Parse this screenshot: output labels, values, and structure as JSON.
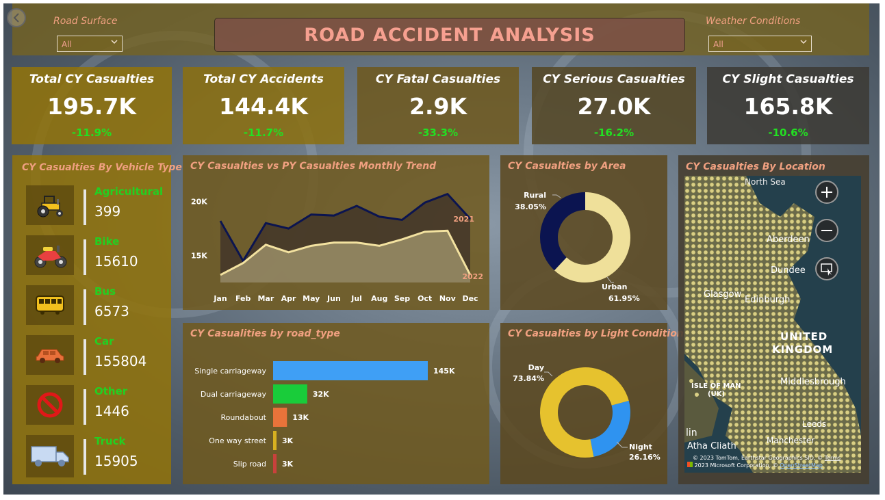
{
  "filters": {
    "road_surface": {
      "label": "Road Surface",
      "value": "All"
    },
    "weather": {
      "label": "Weather Conditions",
      "value": "All"
    }
  },
  "title": "ROAD ACCIDENT ANALYSIS",
  "kpis": [
    {
      "title": "Total CY Casualties",
      "value": "195.7K",
      "change": "-11.9%"
    },
    {
      "title": "Total CY Accidents",
      "value": "144.4K",
      "change": "-11.7%"
    },
    {
      "title": "CY Fatal Casualties",
      "value": "2.9K",
      "change": "-33.3%"
    },
    {
      "title": "CY Serious Casualties",
      "value": "27.0K",
      "change": "-16.2%"
    },
    {
      "title": "CY Slight Casualties",
      "value": "165.8K",
      "change": "-10.6%"
    }
  ],
  "vehicle_panel": {
    "title": "CY Casualties By Vehicle Type",
    "items": [
      {
        "name": "Agricultural",
        "value": "399",
        "icon": "tractor-icon"
      },
      {
        "name": "Bike",
        "value": "15610",
        "icon": "motorbike-icon"
      },
      {
        "name": "Bus",
        "value": "6573",
        "icon": "bus-icon"
      },
      {
        "name": "Car",
        "value": "155804",
        "icon": "car-icon"
      },
      {
        "name": "Other",
        "value": "1446",
        "icon": "no-entry-icon"
      },
      {
        "name": "Truck",
        "value": "15905",
        "icon": "truck-icon"
      }
    ]
  },
  "trend_panel": {
    "title": "CY Casualties vs PY Casualties Monthly Trend"
  },
  "area_panel": {
    "title": "CY Casualties by Area"
  },
  "road_panel": {
    "title": "CY Casualities by road_type"
  },
  "light_panel": {
    "title": "CY Casualties by Light Conditions"
  },
  "map_panel": {
    "title": "CY Casualties By Location",
    "labels": [
      "North Sea",
      "Aberdeen",
      "Dundee",
      "Glasgow",
      "Edinburgh",
      "UNITED",
      "KINGDOM",
      "ISLE OF MAN",
      "(UK)",
      "Middlesbrough",
      "Leeds",
      "Manchester",
      "lin",
      "Atha Cliath"
    ],
    "attribution_1": "© 2023 TomTom, Earthstar Geographics SIO, ©",
    "attribution_terms": "Terms",
    "attribution_2": "2023 Microsoft Corporation, ©",
    "attribution_osm": "OpenStreetMap"
  },
  "colors": {
    "accent_title": "#f0a080",
    "positive_change": "#22e022",
    "cy_line": "#0b1450",
    "py_line": "#f3e2a0",
    "urban": "#efe09a",
    "rural": "#0b1450",
    "day": "#e6c22e",
    "night": "#2f93f0"
  },
  "chart_data": [
    {
      "type": "area",
      "title": "CY Casualties vs PY Casualties Monthly Trend",
      "categories": [
        "Jan",
        "Feb",
        "Mar",
        "Apr",
        "May",
        "Jun",
        "Jul",
        "Aug",
        "Sep",
        "Oct",
        "Nov",
        "Dec"
      ],
      "yticks": [
        "15K",
        "20K"
      ],
      "ylim": [
        12500,
        21500
      ],
      "series": [
        {
          "name": "2021",
          "values": [
            18200,
            14500,
            18000,
            17500,
            18800,
            18700,
            19600,
            18600,
            18300,
            19900,
            20700,
            18400
          ]
        },
        {
          "name": "2022",
          "values": [
            13200,
            14300,
            16000,
            15300,
            15900,
            16200,
            16200,
            15900,
            16500,
            17200,
            17300,
            13200
          ]
        }
      ]
    },
    {
      "type": "pie",
      "title": "CY Casualties by Area",
      "labels": [
        "Urban",
        "Rural"
      ],
      "values": [
        61.95,
        38.05
      ],
      "value_labels": [
        "61.95%",
        "38.05%"
      ]
    },
    {
      "type": "bar",
      "title": "CY Casualities by road_type",
      "categories": [
        "Single carriageway",
        "Dual carriageway",
        "Roundabout",
        "One way street",
        "Slip road"
      ],
      "values": [
        145000,
        32000,
        13000,
        3000,
        3000
      ],
      "value_labels": [
        "145K",
        "32K",
        "13K",
        "3K",
        "3K"
      ],
      "bar_colors": [
        "#3f9ff5",
        "#19cc3a",
        "#e8733a",
        "#d8b020",
        "#c9413c"
      ]
    },
    {
      "type": "pie",
      "title": "CY Casualties by Light Conditions",
      "labels": [
        "Day",
        "Night"
      ],
      "values": [
        73.84,
        26.16
      ],
      "value_labels": [
        "73.84%",
        "26.16%"
      ]
    }
  ]
}
